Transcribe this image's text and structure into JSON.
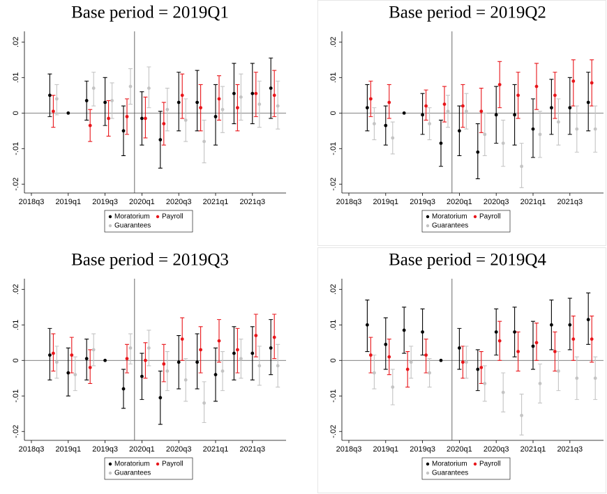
{
  "chart_data": [
    {
      "type": "errorbar",
      "title": "Base period = 2019Q1",
      "categories": [
        "2018q3",
        null,
        "2019q1",
        null,
        "2019q3",
        null,
        "2020q1",
        null,
        "2020q3",
        null,
        "2021q1",
        null,
        "2021q3",
        null
      ],
      "ylim": [
        -0.0225,
        0.023
      ],
      "yticks": [
        {
          "value": -0.02,
          "label": "-.02"
        },
        {
          "value": -0.01,
          "label": "-.01"
        },
        0,
        {
          "value": 0.01,
          "label": ".01"
        },
        {
          "value": 0.02,
          "label": ".02"
        }
      ],
      "series": [
        {
          "name": "Moratorium",
          "color": "#000000",
          "values": [
            null,
            0.005,
            0,
            0.0035,
            0.003,
            -0.005,
            -0.0015,
            -0.0075,
            0.003,
            0.003,
            -0.001,
            0.0055,
            0.0055,
            0.007
          ],
          "lower": [
            null,
            -0.001,
            0,
            -0.002,
            -0.0035,
            -0.012,
            -0.009,
            -0.0155,
            -0.005,
            -0.005,
            -0.009,
            -0.003,
            -0.003,
            -0.0015
          ],
          "upper": [
            null,
            0.011,
            0,
            0.009,
            0.01,
            0.002,
            0.006,
            0.0005,
            0.0115,
            0.012,
            0.008,
            0.014,
            0.014,
            0.0155
          ]
        },
        {
          "name": "Payroll",
          "color": "#e8151a",
          "values": [
            null,
            0.0005,
            null,
            -0.0035,
            -0.0015,
            -0.001,
            -0.0015,
            -0.003,
            0.005,
            0.0015,
            0.004,
            0.0015,
            0.0055,
            0.005
          ],
          "lower": [
            null,
            -0.004,
            null,
            -0.008,
            -0.0065,
            -0.006,
            -0.007,
            -0.009,
            -0.0015,
            -0.005,
            -0.002,
            -0.005,
            -0.001,
            -0.001
          ],
          "upper": [
            null,
            0.005,
            null,
            0.001,
            0.0035,
            0.004,
            0.0045,
            0.003,
            0.011,
            0.008,
            0.0105,
            0.008,
            0.0115,
            0.012
          ]
        },
        {
          "name": "Guarantees",
          "color": "#c4c4c4",
          "values": [
            null,
            0.004,
            null,
            0.007,
            0.0035,
            0.0075,
            0.007,
            0.001,
            -0.002,
            -0.008,
            0.001,
            0.0045,
            0.0025,
            0.002
          ],
          "lower": [
            null,
            -0.0005,
            null,
            0.002,
            -0.0015,
            0.0025,
            0.0015,
            -0.005,
            -0.008,
            -0.014,
            -0.0055,
            -0.002,
            -0.004,
            -0.0045
          ],
          "upper": [
            null,
            0.008,
            null,
            0.0115,
            0.0085,
            0.0125,
            0.013,
            0.007,
            0.004,
            -0.002,
            0.0075,
            0.011,
            0.009,
            0.009
          ]
        }
      ]
    },
    {
      "type": "errorbar",
      "title": "Base period = 2019Q2",
      "categories": [
        "2018q3",
        null,
        "2019q1",
        null,
        "2019q3",
        null,
        "2020q1",
        null,
        "2020q3",
        null,
        "2021q1",
        null,
        "2021q3",
        null
      ],
      "ylim": [
        -0.0225,
        0.023
      ],
      "yticks": [
        {
          "value": -0.02,
          "label": "-.02"
        },
        {
          "value": -0.01,
          "label": "-.01"
        },
        0,
        {
          "value": 0.01,
          "label": ".01"
        },
        {
          "value": 0.02,
          "label": ".02"
        }
      ],
      "series": [
        {
          "name": "Moratorium",
          "color": "#000000",
          "values": [
            null,
            0.0015,
            -0.0035,
            0,
            -0.0005,
            -0.0085,
            -0.005,
            -0.011,
            -0.0005,
            -0.0005,
            -0.0045,
            0.0015,
            0.0015,
            0.003
          ],
          "lower": [
            null,
            -0.005,
            -0.009,
            0,
            -0.006,
            -0.015,
            -0.012,
            -0.0185,
            -0.0085,
            -0.009,
            -0.0125,
            -0.006,
            -0.006,
            -0.005
          ],
          "upper": [
            null,
            0.008,
            0.002,
            0,
            0.0055,
            -0.002,
            0.002,
            -0.003,
            0.0075,
            0.008,
            0.004,
            0.0095,
            0.01,
            0.0115
          ]
        },
        {
          "name": "Payroll",
          "color": "#e8151a",
          "values": [
            null,
            0.004,
            0.003,
            null,
            0.002,
            0.0025,
            0.002,
            0.0005,
            0.008,
            0.005,
            0.0075,
            0.005,
            0.009,
            0.0085
          ],
          "lower": [
            null,
            -0.001,
            -0.0015,
            null,
            -0.002,
            -0.0025,
            -0.004,
            -0.0055,
            0.0015,
            -0.0015,
            0.001,
            -0.0015,
            0.002,
            0.002
          ],
          "upper": [
            null,
            0.009,
            0.008,
            null,
            0.0065,
            0.0075,
            0.008,
            0.007,
            0.0145,
            0.0115,
            0.014,
            0.0115,
            0.015,
            0.015
          ]
        },
        {
          "name": "Guarantees",
          "color": "#c4c4c4",
          "values": [
            null,
            -0.003,
            -0.007,
            null,
            -0.003,
            0.0005,
            0.0005,
            -0.006,
            -0.0085,
            -0.015,
            -0.006,
            -0.0025,
            -0.0045,
            -0.0045
          ],
          "lower": [
            null,
            -0.0075,
            -0.0115,
            null,
            -0.0075,
            -0.004,
            -0.0045,
            -0.012,
            -0.015,
            -0.021,
            -0.0125,
            -0.009,
            -0.011,
            -0.011
          ],
          "upper": [
            null,
            0.0015,
            -0.0025,
            null,
            0.0015,
            0.005,
            0.0055,
            0,
            -0.002,
            -0.0085,
            0.0005,
            0.004,
            0.002,
            0.002
          ]
        }
      ]
    },
    {
      "type": "errorbar",
      "title": "Base period = 2019Q3",
      "categories": [
        "2018q3",
        null,
        "2019q1",
        null,
        "2019q3",
        null,
        "2020q1",
        null,
        "2020q3",
        null,
        "2021q1",
        null,
        "2021q3",
        null
      ],
      "ylim": [
        -0.0225,
        0.023
      ],
      "yticks": [
        {
          "value": -0.02,
          "label": "-.02"
        },
        {
          "value": -0.01,
          "label": "-.01"
        },
        0,
        {
          "value": 0.01,
          "label": ".01"
        },
        {
          "value": 0.02,
          "label": ".02"
        }
      ],
      "series": [
        {
          "name": "Moratorium",
          "color": "#000000",
          "values": [
            null,
            0.0015,
            -0.0035,
            0.0005,
            0,
            -0.008,
            -0.0045,
            -0.0105,
            -0.0005,
            -0.0005,
            -0.004,
            0.002,
            0.002,
            0.0035
          ],
          "lower": [
            null,
            -0.0055,
            -0.01,
            -0.0055,
            0,
            -0.0135,
            -0.011,
            -0.018,
            -0.008,
            -0.008,
            -0.0115,
            -0.0055,
            -0.0055,
            -0.004
          ],
          "upper": [
            null,
            0.009,
            0.0035,
            0.006,
            0,
            -0.0025,
            0.002,
            -0.003,
            0.007,
            0.0075,
            0.0035,
            0.0095,
            0.0095,
            0.0115
          ]
        },
        {
          "name": "Payroll",
          "color": "#e8151a",
          "values": [
            null,
            0.002,
            0.0015,
            -0.002,
            null,
            0.0005,
            0,
            -0.001,
            0.006,
            0.003,
            0.0055,
            0.003,
            0.007,
            0.0065
          ],
          "lower": [
            null,
            -0.003,
            -0.0035,
            -0.0065,
            null,
            -0.0035,
            -0.005,
            -0.006,
            0,
            -0.0035,
            -0.0005,
            -0.0035,
            0.001,
            0.0005
          ],
          "upper": [
            null,
            0.0075,
            0.0065,
            0.003,
            null,
            0.0045,
            0.005,
            0.0045,
            0.012,
            0.0095,
            0.0115,
            0.009,
            0.013,
            0.013
          ]
        },
        {
          "name": "Guarantees",
          "color": "#c4c4c4",
          "values": [
            null,
            -0.0005,
            -0.004,
            0.003,
            null,
            0.0035,
            0.0035,
            -0.003,
            -0.0055,
            -0.012,
            -0.003,
            0.0005,
            -0.0015,
            -0.0015
          ],
          "lower": [
            null,
            -0.005,
            -0.0085,
            -0.0015,
            null,
            -0.001,
            -0.0015,
            -0.0085,
            -0.0115,
            -0.0175,
            -0.0085,
            -0.005,
            -0.007,
            -0.0075
          ],
          "upper": [
            null,
            0.004,
            0.001,
            0.0075,
            null,
            0.0075,
            0.0085,
            0.0025,
            0.0005,
            -0.006,
            0.0025,
            0.006,
            0.004,
            0.0045
          ]
        }
      ]
    },
    {
      "type": "errorbar",
      "title": "Base period = 2019Q4",
      "categories": [
        "2018q3",
        null,
        "2019q1",
        null,
        "2019q3",
        null,
        "2020q1",
        null,
        "2020q3",
        null,
        "2021q1",
        null,
        "2021q3",
        null
      ],
      "ylim": [
        -0.0225,
        0.023
      ],
      "yticks": [
        {
          "value": -0.02,
          "label": "-.02"
        },
        {
          "value": -0.01,
          "label": "-.01"
        },
        0,
        {
          "value": 0.01,
          "label": ".01"
        },
        {
          "value": 0.02,
          "label": ".02"
        }
      ],
      "series": [
        {
          "name": "Moratorium",
          "color": "#000000",
          "values": [
            null,
            0.01,
            0.0045,
            0.0085,
            0.008,
            0,
            0.0035,
            -0.0025,
            0.008,
            0.008,
            0.004,
            0.01,
            0.01,
            0.0115
          ],
          "lower": [
            null,
            0.0025,
            -0.0025,
            0.002,
            0.0015,
            0,
            -0.0025,
            -0.0085,
            0.0015,
            0.001,
            -0.0025,
            0.003,
            0.003,
            0.0045
          ],
          "upper": [
            null,
            0.017,
            0.012,
            0.015,
            0.0145,
            0,
            0.009,
            0.003,
            0.0145,
            0.015,
            0.011,
            0.017,
            0.0175,
            0.019
          ]
        },
        {
          "name": "Payroll",
          "color": "#e8151a",
          "values": [
            null,
            0.0015,
            0.001,
            -0.0025,
            0.0015,
            null,
            -0.0005,
            -0.002,
            0.0055,
            0.0025,
            0.005,
            0.0025,
            0.006,
            0.006
          ],
          "lower": [
            null,
            -0.0035,
            -0.004,
            -0.0075,
            -0.0035,
            null,
            -0.005,
            -0.0065,
            0,
            -0.003,
            0,
            -0.003,
            0,
            -0.0005
          ],
          "upper": [
            null,
            0.0065,
            0.006,
            0.0025,
            0.006,
            null,
            0.004,
            0.0025,
            0.011,
            0.008,
            0.0105,
            0.008,
            0.0125,
            0.0125
          ]
        },
        {
          "name": "Guarantees",
          "color": "#c4c4c4",
          "values": [
            null,
            -0.0035,
            -0.0075,
            -0.0005,
            -0.0035,
            null,
            -0.0005,
            -0.0065,
            -0.009,
            -0.0155,
            -0.0065,
            -0.003,
            -0.005,
            -0.005
          ],
          "lower": [
            null,
            -0.008,
            -0.0125,
            -0.005,
            -0.0075,
            null,
            -0.005,
            -0.0115,
            -0.0145,
            -0.021,
            -0.012,
            -0.0085,
            -0.011,
            -0.011
          ],
          "upper": [
            null,
            0.0015,
            -0.0025,
            0.004,
            0.0005,
            null,
            0.004,
            -0.0015,
            -0.0035,
            -0.0095,
            -0.001,
            0.0025,
            0.001,
            0.001
          ]
        }
      ]
    }
  ]
}
